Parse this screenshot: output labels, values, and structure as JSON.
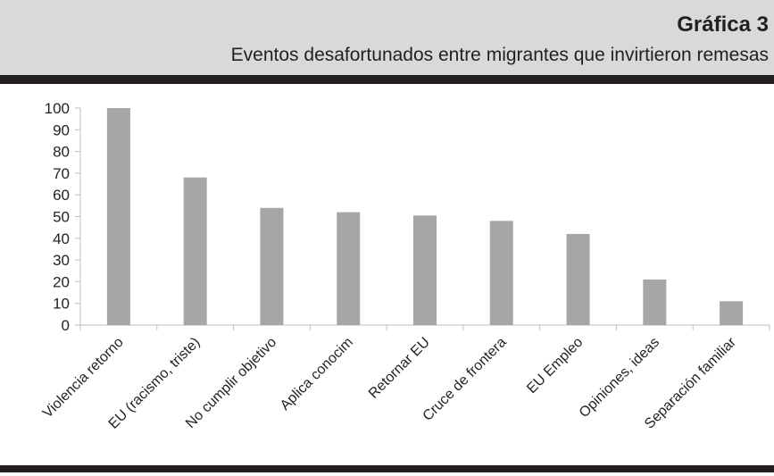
{
  "figure": {
    "label": "Gráfica 3",
    "title": "Eventos desafortunados entre migrantes que invirtieron remesas"
  },
  "colors": {
    "header_bg": "#d9d9d9",
    "rule": "#231f20",
    "bar": "#a6a6a6",
    "axis": "#bfbfbf",
    "text": "#231f20"
  },
  "chart_data": {
    "type": "bar",
    "title": "",
    "xlabel": "",
    "ylabel": "",
    "grid": false,
    "legend": "none",
    "ylim": [
      0,
      100
    ],
    "yticks": [
      0,
      10,
      20,
      30,
      40,
      50,
      60,
      70,
      80,
      90,
      100
    ],
    "categories": [
      "Violencia retorno",
      "EU (racismo, triste)",
      "No cumplir objetivo",
      "Aplica conocim",
      "Retornar EU",
      "Cruce de frontera",
      "EU Empleo",
      "Opiniones, ideas",
      "Separación familiar"
    ],
    "values": [
      100,
      68,
      54,
      52,
      50.5,
      48,
      42,
      21,
      11
    ]
  }
}
